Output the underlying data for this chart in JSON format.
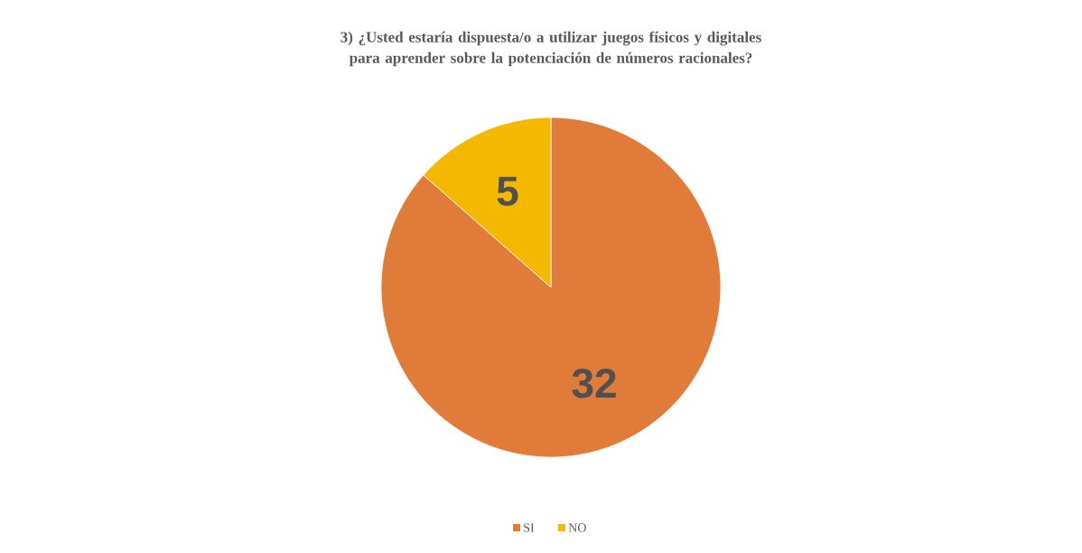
{
  "chart_data": {
    "type": "pie",
    "title": "3) ¿Usted estaría dispuesta/o a utilizar juegos físicos y digitales para aprender sobre la potenciación de números racionales?",
    "categories": [
      "SI",
      "NO"
    ],
    "values": [
      32,
      5
    ],
    "colors": [
      "#e07b39",
      "#f5b800"
    ],
    "data_labels": true,
    "legend": "bottom"
  }
}
